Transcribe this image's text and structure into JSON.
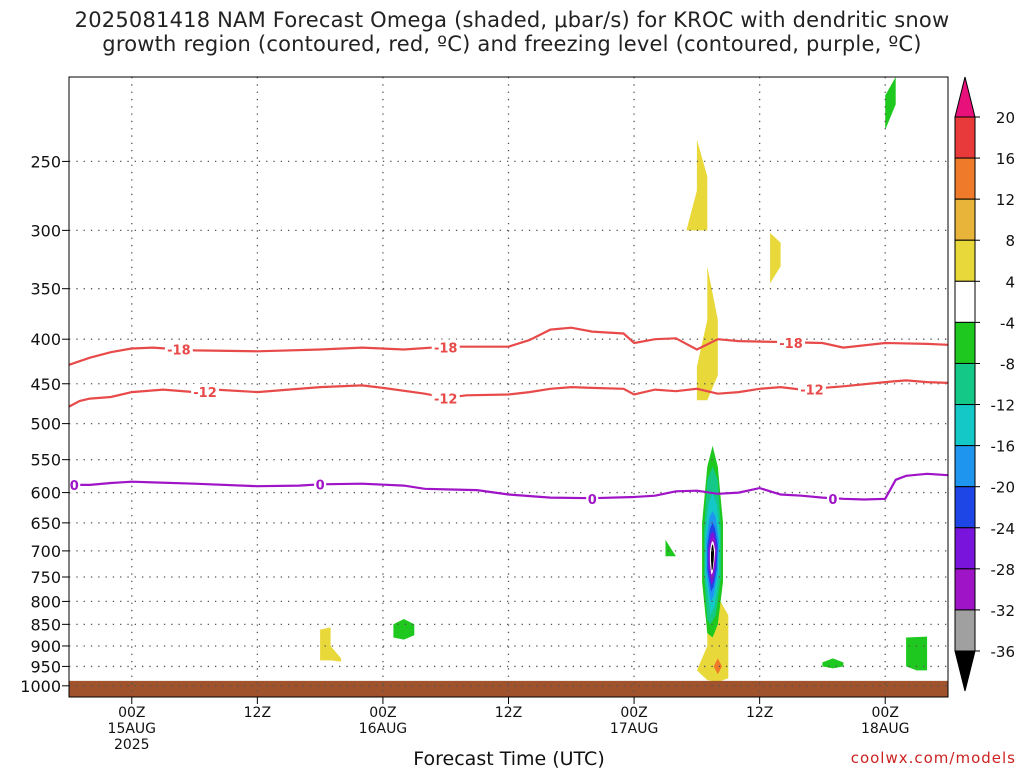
{
  "chart_data": {
    "type": "heatmap",
    "title_line1": "2025081418 NAM Forecast Omega (shaded, μbar/s) for KROC with dendritic snow",
    "title_line2": "growth region (contoured, red, ºC) and freezing level (contoured, purple, ºC)",
    "xlabel": "Forecast Time (UTC)",
    "credit": "coolwx.com/models",
    "y_axis": {
      "scale": "log-pressure",
      "range": [
        1030,
        200
      ],
      "units": "mb",
      "ticks": [
        250,
        300,
        350,
        400,
        450,
        500,
        550,
        600,
        650,
        700,
        750,
        800,
        850,
        900,
        950,
        1000
      ]
    },
    "x_axis": {
      "range_hours": [
        -6,
        78
      ],
      "ticks": [
        {
          "hour": 0,
          "lines": [
            "00Z",
            "15AUG",
            "2025"
          ]
        },
        {
          "hour": 12,
          "lines": [
            "12Z"
          ]
        },
        {
          "hour": 24,
          "lines": [
            "00Z",
            "16AUG"
          ]
        },
        {
          "hour": 36,
          "lines": [
            "12Z"
          ]
        },
        {
          "hour": 48,
          "lines": [
            "00Z",
            "17AUG"
          ]
        },
        {
          "hour": 60,
          "lines": [
            "12Z"
          ]
        },
        {
          "hour": 72,
          "lines": [
            "00Z",
            "18AUG"
          ]
        }
      ]
    },
    "grid": true,
    "colorbar": {
      "ticks": [
        20,
        16,
        12,
        8,
        4,
        -4,
        -8,
        -12,
        -16,
        -20,
        -24,
        -28,
        -32,
        -36
      ],
      "colors": [
        "#e8107a",
        "#e83a3a",
        "#ef7b2a",
        "#e8b43a",
        "#e8d83a",
        "#ffffff",
        "#1ec81e",
        "#14c887",
        "#14c8c8",
        "#1e96f0",
        "#1e46e6",
        "#7814dc",
        "#a014c8",
        "#a0a0a0",
        "#000000"
      ]
    },
    "contours": [
      {
        "label": "-18",
        "color": "#e84a4a",
        "points": [
          [
            -6,
            428
          ],
          [
            -4,
            420
          ],
          [
            -2,
            414
          ],
          [
            0,
            410
          ],
          [
            2,
            409
          ],
          [
            6,
            412
          ],
          [
            12,
            413
          ],
          [
            18,
            411
          ],
          [
            22,
            409
          ],
          [
            26,
            411
          ],
          [
            30,
            408
          ],
          [
            36,
            408
          ],
          [
            38,
            401
          ],
          [
            40,
            390
          ],
          [
            42,
            388
          ],
          [
            44,
            392
          ],
          [
            47,
            394
          ],
          [
            48,
            404
          ],
          [
            50,
            400
          ],
          [
            52,
            399
          ],
          [
            54,
            411
          ],
          [
            56,
            400
          ],
          [
            58,
            402
          ],
          [
            62,
            403
          ],
          [
            66,
            404
          ],
          [
            68,
            409
          ],
          [
            72,
            404
          ],
          [
            76,
            405
          ],
          [
            78,
            406
          ]
        ],
        "labels_at": [
          [
            4.5,
            411
          ],
          [
            30,
            409
          ],
          [
            63,
            404
          ]
        ]
      },
      {
        "label": "-12",
        "color": "#e84a4a",
        "points": [
          [
            -6,
            478
          ],
          [
            -5,
            471
          ],
          [
            -4,
            468
          ],
          [
            -2,
            466
          ],
          [
            0,
            460
          ],
          [
            3,
            457
          ],
          [
            6,
            460
          ],
          [
            8,
            457
          ],
          [
            12,
            460
          ],
          [
            18,
            454
          ],
          [
            22,
            452
          ],
          [
            24,
            455
          ],
          [
            28,
            462
          ],
          [
            30,
            467
          ],
          [
            32,
            464
          ],
          [
            36,
            463
          ],
          [
            38,
            460
          ],
          [
            40,
            456
          ],
          [
            42,
            454
          ],
          [
            44,
            455
          ],
          [
            47,
            456
          ],
          [
            48,
            463
          ],
          [
            50,
            457
          ],
          [
            52,
            459
          ],
          [
            54,
            456
          ],
          [
            56,
            462
          ],
          [
            58,
            460
          ],
          [
            60,
            456
          ],
          [
            62,
            454
          ],
          [
            64,
            457
          ],
          [
            68,
            453
          ],
          [
            72,
            448
          ],
          [
            74,
            446
          ],
          [
            76,
            448
          ],
          [
            78,
            449
          ]
        ],
        "labels_at": [
          [
            7,
            460
          ],
          [
            30,
            468
          ],
          [
            65,
            457
          ]
        ]
      },
      {
        "label": "0",
        "color": "#a014c8",
        "points": [
          [
            -6,
            588
          ],
          [
            -4,
            588
          ],
          [
            -2,
            585
          ],
          [
            0,
            583
          ],
          [
            2,
            584
          ],
          [
            6,
            586
          ],
          [
            12,
            590
          ],
          [
            16,
            589
          ],
          [
            18,
            587
          ],
          [
            22,
            586
          ],
          [
            26,
            589
          ],
          [
            28,
            594
          ],
          [
            30,
            595
          ],
          [
            33,
            596
          ],
          [
            36,
            603
          ],
          [
            40,
            608
          ],
          [
            44,
            609
          ],
          [
            48,
            607
          ],
          [
            50,
            605
          ],
          [
            52,
            598
          ],
          [
            54,
            597
          ],
          [
            56,
            602
          ],
          [
            58,
            600
          ],
          [
            60,
            593
          ],
          [
            62,
            603
          ],
          [
            64,
            605
          ],
          [
            66,
            608
          ],
          [
            68,
            610
          ],
          [
            70,
            611
          ],
          [
            72,
            610
          ],
          [
            73,
            580
          ],
          [
            74,
            574
          ],
          [
            76,
            571
          ],
          [
            78,
            573
          ]
        ],
        "labels_at": [
          [
            -5.5,
            588
          ],
          [
            18,
            587
          ],
          [
            44,
            610
          ],
          [
            67,
            610
          ]
        ]
      }
    ],
    "terrain": {
      "color": "#a0522d",
      "top_mb": 987
    },
    "shaded_regions": [
      {
        "color": "#e8d83a",
        "polygon": [
          [
            53,
            300
          ],
          [
            54,
            270
          ],
          [
            54,
            236
          ],
          [
            55,
            260
          ],
          [
            55,
            300
          ]
        ]
      },
      {
        "color": "#e8d83a",
        "polygon": [
          [
            61,
            345
          ],
          [
            61,
            320
          ],
          [
            61,
            302
          ],
          [
            62,
            310
          ],
          [
            62,
            330
          ]
        ]
      },
      {
        "color": "#e8d83a",
        "polygon": [
          [
            54,
            470
          ],
          [
            54,
            430
          ],
          [
            55,
            380
          ],
          [
            55,
            330
          ],
          [
            56,
            380
          ],
          [
            56,
            440
          ],
          [
            55,
            470
          ]
        ]
      },
      {
        "color": "#1ec81e",
        "polygon": [
          [
            72,
            230
          ],
          [
            72,
            210
          ],
          [
            73,
            200
          ],
          [
            73,
            215
          ]
        ]
      },
      {
        "color": "#e8d83a",
        "polygon": [
          [
            18,
            892
          ],
          [
            18,
            862
          ],
          [
            19,
            857
          ],
          [
            19,
            900
          ],
          [
            20,
            930
          ],
          [
            20,
            938
          ],
          [
            19,
            935
          ],
          [
            18,
            935
          ]
        ]
      },
      {
        "color": "#1ec81e",
        "polygon": [
          [
            25,
            880
          ],
          [
            25,
            850
          ],
          [
            26,
            838
          ],
          [
            27,
            850
          ],
          [
            27,
            875
          ],
          [
            26,
            885
          ]
        ]
      },
      {
        "color": "#1ec81e",
        "polygon": [
          [
            51,
            710
          ],
          [
            51,
            680
          ],
          [
            52,
            710
          ]
        ]
      },
      {
        "color": "#1ec81e",
        "polygon": [
          [
            66,
            950
          ],
          [
            66,
            940
          ],
          [
            67,
            930
          ],
          [
            68,
            940
          ],
          [
            68,
            950
          ],
          [
            67,
            955
          ]
        ]
      },
      {
        "color": "#1ec81e",
        "polygon": [
          [
            74,
            910
          ],
          [
            74,
            880
          ],
          [
            76,
            878
          ],
          [
            76,
            920
          ],
          [
            76,
            960
          ],
          [
            75,
            960
          ],
          [
            74,
            950
          ]
        ]
      },
      {
        "color": "#e8d83a",
        "polygon": [
          [
            55,
            800
          ],
          [
            56,
            790
          ],
          [
            57,
            830
          ],
          [
            57,
            900
          ],
          [
            57,
            980
          ],
          [
            56,
            990
          ],
          [
            55,
            985
          ],
          [
            54,
            960
          ],
          [
            55,
            900
          ]
        ]
      },
      {
        "color": "#ef7b2a",
        "polygon": [
          [
            55.6,
            950
          ],
          [
            56,
            930
          ],
          [
            56.4,
            950
          ],
          [
            56,
            970
          ]
        ]
      },
      {
        "color": "#1ec81e",
        "polygon": [
          [
            54.5,
            760
          ],
          [
            54.5,
            650
          ],
          [
            55,
            560
          ],
          [
            55.5,
            530
          ],
          [
            56,
            560
          ],
          [
            56.5,
            650
          ],
          [
            56.5,
            760
          ],
          [
            56,
            850
          ],
          [
            55.5,
            880
          ],
          [
            55,
            870
          ]
        ]
      },
      {
        "color": "#14c887",
        "polygon": [
          [
            54.7,
            750
          ],
          [
            54.7,
            660
          ],
          [
            55,
            580
          ],
          [
            55.5,
            560
          ],
          [
            56,
            580
          ],
          [
            56.3,
            660
          ],
          [
            56.3,
            750
          ],
          [
            55.8,
            830
          ],
          [
            55.3,
            850
          ],
          [
            55,
            840
          ]
        ]
      },
      {
        "color": "#14c8c8",
        "polygon": [
          [
            54.8,
            745
          ],
          [
            54.8,
            670
          ],
          [
            55.1,
            620
          ],
          [
            55.5,
            600
          ],
          [
            55.9,
            620
          ],
          [
            56.2,
            670
          ],
          [
            56.1,
            745
          ],
          [
            55.7,
            810
          ],
          [
            55.3,
            830
          ]
        ]
      },
      {
        "color": "#1e96f0",
        "polygon": [
          [
            54.9,
            740
          ],
          [
            54.9,
            680
          ],
          [
            55.2,
            640
          ],
          [
            55.5,
            630
          ],
          [
            55.8,
            640
          ],
          [
            56.1,
            680
          ],
          [
            56,
            740
          ],
          [
            55.6,
            790
          ],
          [
            55.3,
            800
          ]
        ]
      },
      {
        "color": "#1e46e6",
        "polygon": [
          [
            55,
            735
          ],
          [
            55,
            690
          ],
          [
            55.25,
            660
          ],
          [
            55.5,
            650
          ],
          [
            55.75,
            660
          ],
          [
            56,
            690
          ],
          [
            55.9,
            735
          ],
          [
            55.6,
            770
          ],
          [
            55.35,
            780
          ]
        ]
      },
      {
        "color": "#7814dc",
        "polygon": [
          [
            55.1,
            730
          ],
          [
            55.1,
            695
          ],
          [
            55.3,
            670
          ],
          [
            55.5,
            665
          ],
          [
            55.7,
            670
          ],
          [
            55.9,
            695
          ],
          [
            55.8,
            730
          ],
          [
            55.55,
            760
          ],
          [
            55.35,
            765
          ]
        ]
      },
      {
        "color": "#a014c8",
        "polygon": [
          [
            55.2,
            725
          ],
          [
            55.2,
            700
          ],
          [
            55.35,
            680
          ],
          [
            55.5,
            675
          ],
          [
            55.65,
            680
          ],
          [
            55.8,
            700
          ],
          [
            55.7,
            725
          ],
          [
            55.5,
            748
          ],
          [
            55.35,
            752
          ]
        ]
      },
      {
        "color": "#ffffff",
        "polygon": [
          [
            55.25,
            722
          ],
          [
            55.25,
            700
          ],
          [
            55.4,
            685
          ],
          [
            55.5,
            682
          ],
          [
            55.6,
            685
          ],
          [
            55.75,
            700
          ],
          [
            55.65,
            722
          ],
          [
            55.5,
            742
          ],
          [
            55.38,
            745
          ]
        ]
      },
      {
        "color": "#000000",
        "polygon": [
          [
            55.35,
            718
          ],
          [
            55.35,
            702
          ],
          [
            55.45,
            690
          ],
          [
            55.5,
            688
          ],
          [
            55.55,
            690
          ],
          [
            55.65,
            702
          ],
          [
            55.6,
            718
          ],
          [
            55.5,
            735
          ],
          [
            55.42,
            737
          ]
        ]
      }
    ]
  }
}
